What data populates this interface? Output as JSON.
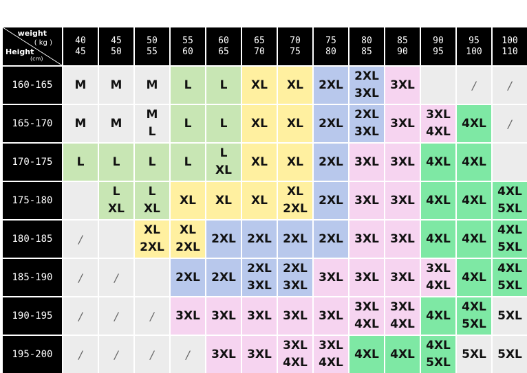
{
  "corner": {
    "weight_label": "weight",
    "unit_weight": "( kg )",
    "height_label": "Height",
    "unit_height": "(cm)"
  },
  "weights": [
    [
      "40",
      "45"
    ],
    [
      "45",
      "50"
    ],
    [
      "50",
      "55"
    ],
    [
      "55",
      "60"
    ],
    [
      "60",
      "65"
    ],
    [
      "65",
      "70"
    ],
    [
      "70",
      "75"
    ],
    [
      "75",
      "80"
    ],
    [
      "80",
      "85"
    ],
    [
      "85",
      "90"
    ],
    [
      "90",
      "95"
    ],
    [
      "95",
      "100"
    ],
    [
      "100",
      "110"
    ]
  ],
  "heights": [
    "160-165",
    "165-170",
    "170-175",
    "175-180",
    "180-185",
    "185-190",
    "190-195",
    "195-200"
  ],
  "sizes": [
    [
      "M",
      "M",
      "M",
      "L",
      "L",
      "XL",
      "XL",
      "2XL",
      "2XL\n3XL",
      "3XL",
      "",
      "/",
      "/"
    ],
    [
      "M",
      "M",
      "M\nL",
      "L",
      "L",
      "XL",
      "XL",
      "2XL",
      "2XL\n3XL",
      "3XL",
      "3XL\n4XL",
      "4XL",
      "/"
    ],
    [
      "L",
      "L",
      "L",
      "L",
      "L\nXL",
      "XL",
      "XL",
      "2XL",
      "3XL",
      "3XL",
      "4XL",
      "4XL",
      ""
    ],
    [
      "",
      "L\nXL",
      "L\nXL",
      "XL",
      "XL",
      "XL",
      "XL\n2XL",
      "2XL",
      "3XL",
      "3XL",
      "4XL",
      "4XL",
      "4XL\n5XL"
    ],
    [
      "/",
      "",
      "XL\n2XL",
      "XL\n2XL",
      "2XL",
      "2XL",
      "2XL",
      "2XL",
      "3XL",
      "3XL",
      "4XL",
      "4XL",
      "4XL\n5XL"
    ],
    [
      "/",
      "/",
      "",
      "2XL",
      "2XL",
      "2XL\n3XL",
      "2XL\n3XL",
      "3XL",
      "3XL",
      "3XL",
      "3XL\n4XL",
      "4XL",
      "4XL\n5XL"
    ],
    [
      "/",
      "/",
      "/",
      "3XL",
      "3XL",
      "3XL",
      "3XL",
      "3XL",
      "3XL\n4XL",
      "3XL\n4XL",
      "4XL",
      "4XL\n5XL",
      "5XL"
    ],
    [
      "/",
      "/",
      "/",
      "/",
      "3XL",
      "3XL",
      "3XL\n4XL",
      "3XL\n4XL",
      "4XL",
      "4XL",
      "4XL\n5XL",
      "5XL",
      "5XL"
    ]
  ],
  "size_colors": {
    "M": "#ececec",
    "L": "#c8e6b4",
    "XL": "#fff0a0",
    "2XL": "#b8c8ec",
    "3XL": "#f6d4f0",
    "4XL": "#7ee8a4",
    "5XL": "#ececec",
    "/": "#ececec",
    "": "#ececec"
  },
  "colors": {
    "header_bg": "#000000",
    "header_fg": "#ffffff",
    "grid": "#ffffff"
  }
}
